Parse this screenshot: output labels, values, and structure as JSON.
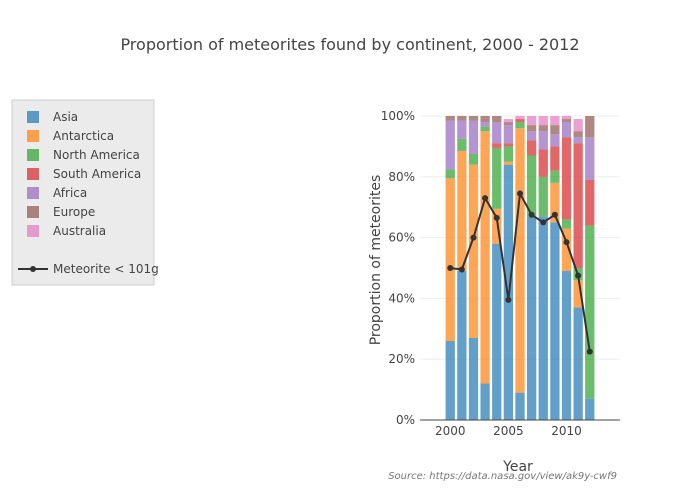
{
  "chart_data": {
    "type": "bar",
    "stacked": true,
    "title": "Proportion of meteorites found by continent, 2000 - 2012",
    "xlabel": "Year",
    "ylabel": "Proportion of meteorites",
    "source": "Source: https://data.nasa.gov/view/ak9y-cwf9",
    "x": [
      2000,
      2001,
      2002,
      2003,
      2004,
      2005,
      2006,
      2007,
      2008,
      2009,
      2010,
      2011,
      2012
    ],
    "xlim": [
      1997.4,
      2014.6
    ],
    "xticks": [
      2000,
      2005,
      2010
    ],
    "ylim": [
      0,
      1
    ],
    "yticks": [
      0,
      0.2,
      0.4,
      0.6,
      0.8,
      1.0
    ],
    "ytick_labels": [
      "0%",
      "20%",
      "40%",
      "60%",
      "80%",
      "100%"
    ],
    "grid": true,
    "legend_position": "left",
    "series": [
      {
        "name": "Asia",
        "color": "#1f77b4",
        "values": [
          0.26,
          0.49,
          0.27,
          0.12,
          0.58,
          0.84,
          0.09,
          0.67,
          0.67,
          0.65,
          0.49,
          0.37,
          0.07
        ]
      },
      {
        "name": "Antarctica",
        "color": "#ff7f0e",
        "values": [
          0.535,
          0.395,
          0.57,
          0.83,
          0.115,
          0.01,
          0.87,
          0.0,
          0.0,
          0.13,
          0.14,
          0.09,
          0.0
        ]
      },
      {
        "name": "North America",
        "color": "#2ca02c",
        "values": [
          0.03,
          0.04,
          0.035,
          0.015,
          0.2,
          0.05,
          0.02,
          0.2,
          0.13,
          0.04,
          0.03,
          0.04,
          0.57
        ]
      },
      {
        "name": "South America",
        "color": "#d62728",
        "values": [
          0.0,
          0.0,
          0.0,
          0.0,
          0.015,
          0.01,
          0.01,
          0.05,
          0.09,
          0.08,
          0.27,
          0.41,
          0.15
        ]
      },
      {
        "name": "Africa",
        "color": "#9467bd",
        "values": [
          0.16,
          0.06,
          0.11,
          0.015,
          0.07,
          0.06,
          0.0,
          0.03,
          0.06,
          0.04,
          0.05,
          0.02,
          0.14
        ]
      },
      {
        "name": "Europe",
        "color": "#8c564b",
        "values": [
          0.015,
          0.015,
          0.015,
          0.02,
          0.02,
          0.01,
          0.0,
          0.02,
          0.02,
          0.03,
          0.01,
          0.02,
          0.07
        ]
      },
      {
        "name": "Australia",
        "color": "#e377c2",
        "values": [
          0.0,
          0.0,
          0.0,
          0.0,
          0.0,
          0.01,
          0.01,
          0.03,
          0.03,
          0.03,
          0.01,
          0.04,
          0.0
        ]
      }
    ],
    "line": {
      "name": "Meteorite < 101g",
      "color": "#333333",
      "values": [
        0.5,
        0.495,
        0.6,
        0.73,
        0.665,
        0.395,
        0.745,
        0.675,
        0.65,
        0.675,
        0.585,
        0.475,
        0.225
      ]
    }
  }
}
